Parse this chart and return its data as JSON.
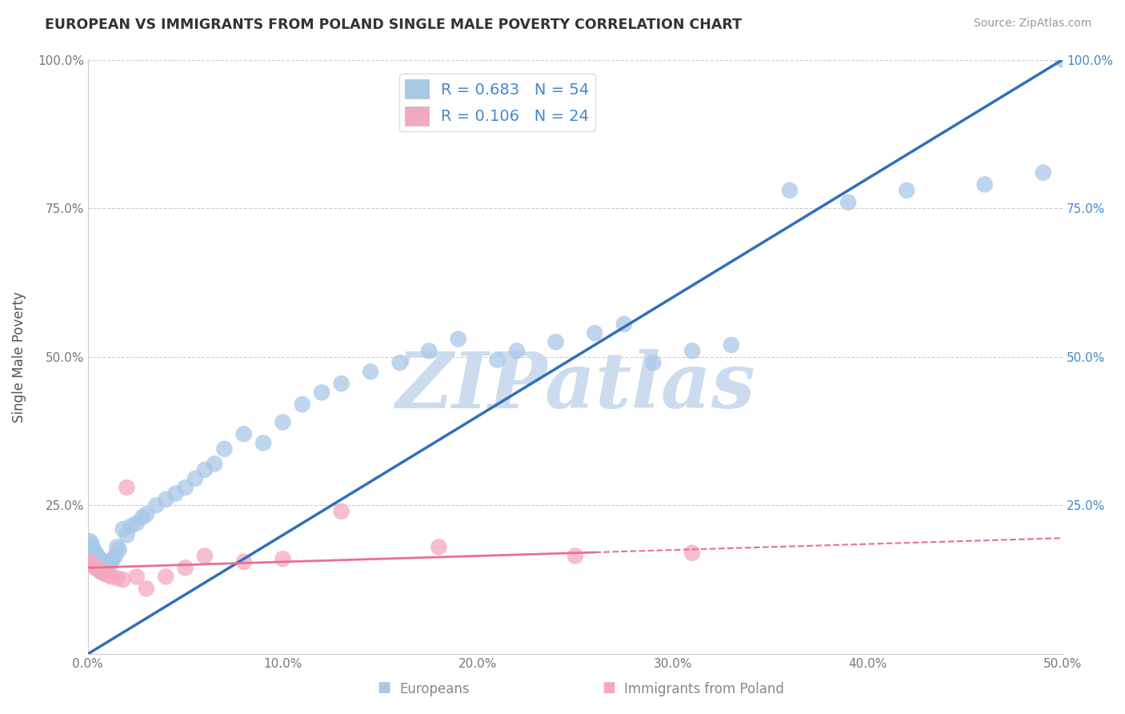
{
  "title": "EUROPEAN VS IMMIGRANTS FROM POLAND SINGLE MALE POVERTY CORRELATION CHART",
  "source": "Source: ZipAtlas.com",
  "xlabel_label": "Europeans",
  "xlabel_label2": "Immigrants from Poland",
  "ylabel": "Single Male Poverty",
  "xlim": [
    0,
    0.5
  ],
  "ylim": [
    0,
    1.0
  ],
  "xticks": [
    0.0,
    0.1,
    0.2,
    0.3,
    0.4,
    0.5
  ],
  "yticks": [
    0.0,
    0.25,
    0.5,
    0.75,
    1.0
  ],
  "xtick_labels": [
    "0.0%",
    "10.0%",
    "20.0%",
    "30.0%",
    "40.0%",
    "50.0%"
  ],
  "ytick_labels": [
    "",
    "25.0%",
    "50.0%",
    "75.0%",
    "100.0%"
  ],
  "right_ytick_labels": [
    "",
    "25.0%",
    "50.0%",
    "75.0%",
    "100.0%"
  ],
  "europeans_R": 0.683,
  "europeans_N": 54,
  "poland_R": 0.106,
  "poland_N": 24,
  "blue_color": "#a8c8e8",
  "pink_color": "#f4a8c0",
  "blue_line_color": "#3070b8",
  "pink_line_color": "#e87090",
  "watermark": "ZIPatlas",
  "watermark_color": "#ccdcee",
  "europeans_x": [
    0.001,
    0.002,
    0.003,
    0.004,
    0.005,
    0.006,
    0.007,
    0.008,
    0.009,
    0.01,
    0.011,
    0.012,
    0.013,
    0.014,
    0.015,
    0.016,
    0.018,
    0.02,
    0.022,
    0.025,
    0.028,
    0.03,
    0.035,
    0.04,
    0.045,
    0.05,
    0.055,
    0.06,
    0.065,
    0.07,
    0.08,
    0.09,
    0.1,
    0.11,
    0.12,
    0.13,
    0.145,
    0.16,
    0.175,
    0.19,
    0.21,
    0.22,
    0.24,
    0.26,
    0.275,
    0.29,
    0.31,
    0.33,
    0.36,
    0.39,
    0.42,
    0.46,
    0.49,
    0.5
  ],
  "europeans_y": [
    0.19,
    0.185,
    0.175,
    0.17,
    0.165,
    0.16,
    0.158,
    0.155,
    0.152,
    0.15,
    0.148,
    0.155,
    0.16,
    0.165,
    0.18,
    0.175,
    0.21,
    0.2,
    0.215,
    0.22,
    0.23,
    0.235,
    0.25,
    0.26,
    0.27,
    0.28,
    0.295,
    0.31,
    0.32,
    0.345,
    0.37,
    0.355,
    0.39,
    0.42,
    0.44,
    0.455,
    0.475,
    0.49,
    0.51,
    0.53,
    0.495,
    0.51,
    0.525,
    0.54,
    0.555,
    0.49,
    0.51,
    0.52,
    0.78,
    0.76,
    0.78,
    0.79,
    0.81,
    1.0
  ],
  "poland_x": [
    0.001,
    0.002,
    0.003,
    0.004,
    0.005,
    0.006,
    0.007,
    0.008,
    0.01,
    0.012,
    0.015,
    0.018,
    0.02,
    0.025,
    0.03,
    0.04,
    0.05,
    0.06,
    0.08,
    0.1,
    0.13,
    0.18,
    0.25,
    0.31
  ],
  "poland_y": [
    0.155,
    0.15,
    0.148,
    0.145,
    0.143,
    0.14,
    0.138,
    0.136,
    0.133,
    0.13,
    0.128,
    0.125,
    0.28,
    0.13,
    0.11,
    0.13,
    0.145,
    0.165,
    0.155,
    0.16,
    0.24,
    0.18,
    0.165,
    0.17
  ],
  "blue_trendline_x": [
    0.0,
    0.5
  ],
  "blue_trendline_y": [
    0.0,
    1.0
  ],
  "pink_trendline_x": [
    0.0,
    0.5
  ],
  "pink_trendline_y": [
    0.145,
    0.195
  ]
}
